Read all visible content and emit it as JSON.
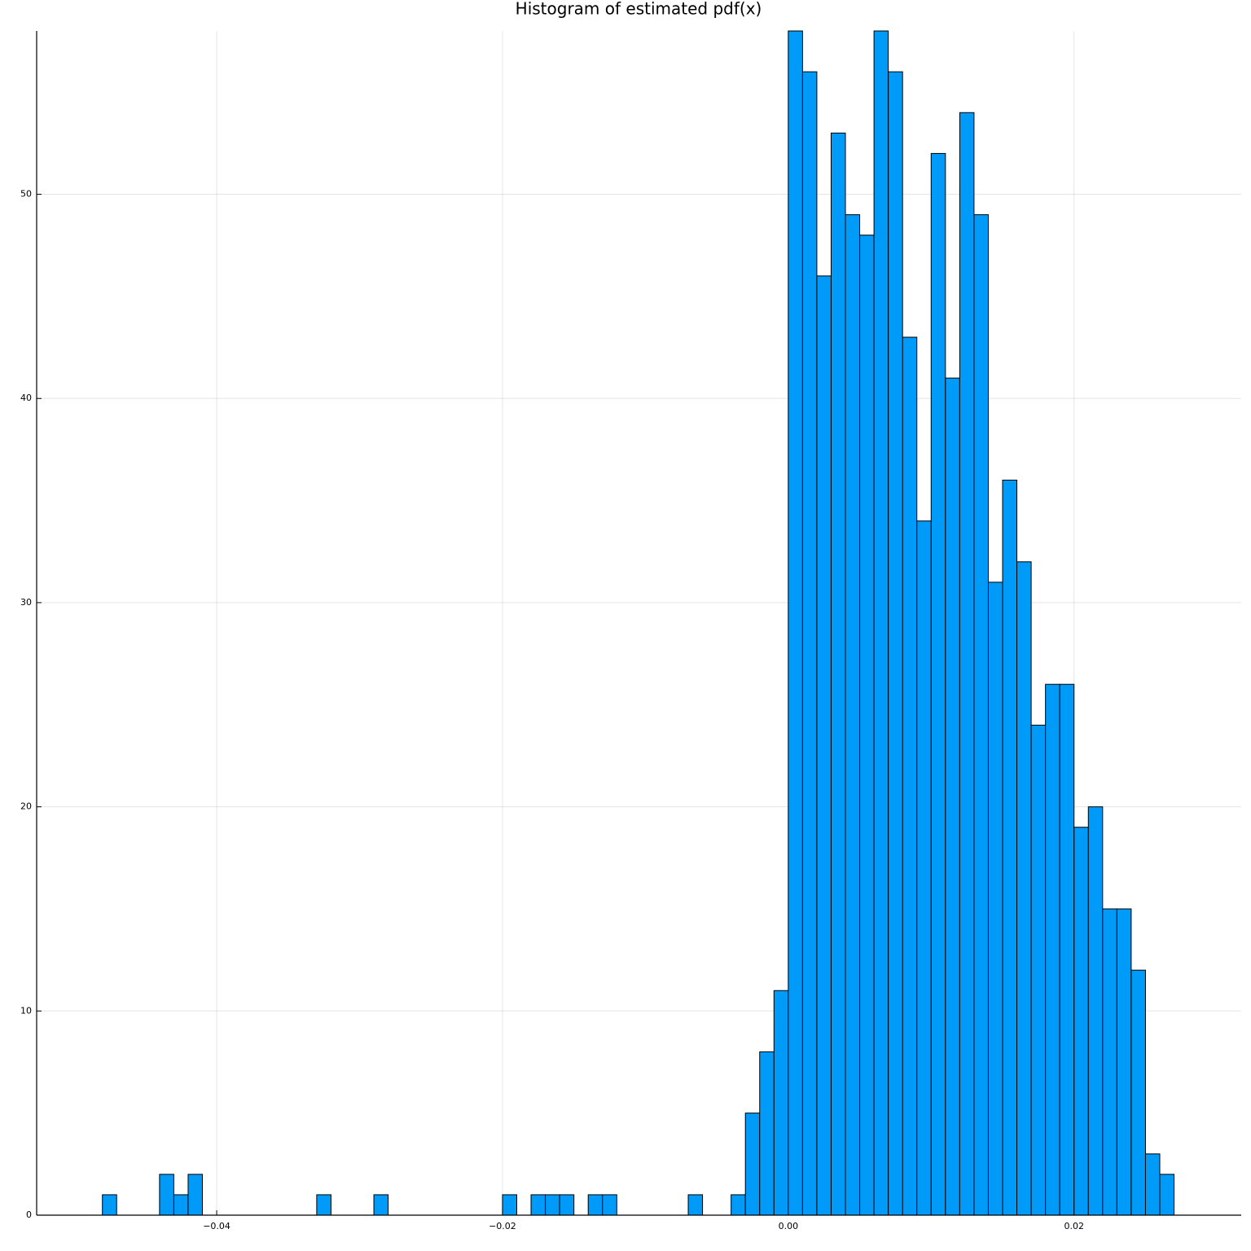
{
  "chart_data": {
    "type": "histogram",
    "title": "Histogram of estimated pdf(x)",
    "bins": [
      -0.048,
      -0.047,
      -0.046,
      -0.045,
      -0.044,
      -0.043,
      -0.042,
      -0.041,
      -0.04,
      -0.039,
      -0.038,
      -0.037,
      -0.036,
      -0.035,
      -0.034,
      -0.033,
      -0.032,
      -0.031,
      -0.03,
      -0.029,
      -0.028,
      -0.027,
      -0.026,
      -0.025,
      -0.024,
      -0.023,
      -0.022,
      -0.021,
      -0.02,
      -0.019,
      -0.018,
      -0.017,
      -0.016,
      -0.015,
      -0.014,
      -0.013,
      -0.012,
      -0.011,
      -0.01,
      -0.009,
      -0.008,
      -0.007,
      -0.006,
      -0.005,
      -0.004,
      -0.003,
      -0.002,
      -0.001,
      0,
      0.001,
      0.002,
      0.003,
      0.004,
      0.005,
      0.006,
      0.007,
      0.008,
      0.009,
      0.01,
      0.011,
      0.012,
      0.013,
      0.014,
      0.015,
      0.016,
      0.017,
      0.018,
      0.019,
      0.02,
      0.021,
      0.022,
      0.023,
      0.024,
      0.025,
      0.026,
      0.027
    ],
    "values": [
      1,
      0,
      0,
      0,
      2,
      1,
      2,
      0,
      0,
      0,
      0,
      0,
      0,
      0,
      0,
      1,
      0,
      0,
      0,
      1,
      0,
      0,
      0,
      0,
      0,
      0,
      0,
      0,
      1,
      0,
      1,
      1,
      1,
      0,
      1,
      1,
      0,
      0,
      0,
      0,
      0,
      1,
      0,
      0,
      1,
      5,
      8,
      11,
      58,
      56,
      46,
      53,
      49,
      48,
      58,
      56,
      43,
      34,
      52,
      41,
      54,
      49,
      31,
      36,
      32,
      24,
      26,
      26,
      19,
      20,
      15,
      15,
      12,
      3,
      2
    ],
    "color": "#009af9",
    "xlim": [
      -0.0526,
      0.0317
    ],
    "xticks": [
      {
        "value": -0.04,
        "label": "−0.04"
      },
      {
        "value": -0.02,
        "label": "−0.02"
      },
      {
        "value": 0,
        "label": "0.00"
      },
      0.02
    ],
    "ylim": [
      0,
      58
    ],
    "yticks": [
      0,
      10,
      20,
      30,
      40,
      50
    ],
    "grid": true
  }
}
